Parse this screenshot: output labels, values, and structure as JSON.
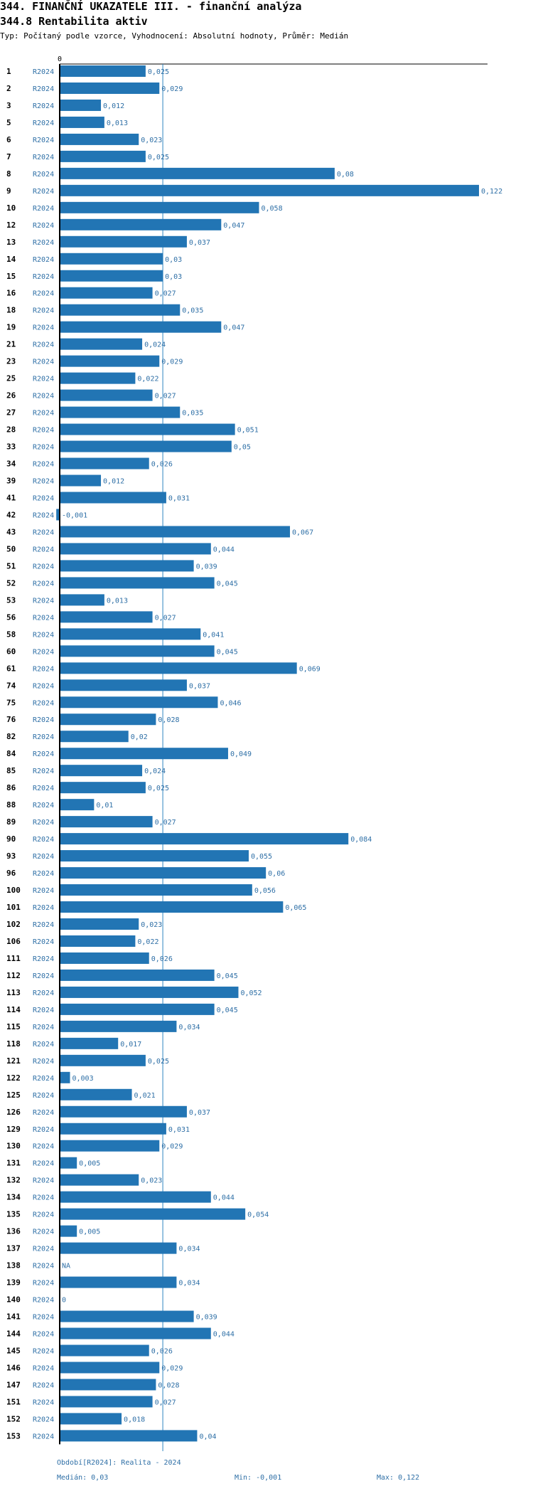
{
  "header": {
    "title": "344. FINANČNÍ UKAZATELE III. - finanční analýza",
    "subtitle": "344.8 Rentabilita aktiv",
    "description": "Typ: Počítaný podle vzorce, Vyhodnocení: Absolutní hodnoty, Průměr: Medián"
  },
  "chart_data": {
    "type": "bar",
    "orientation": "horizontal",
    "title": "344.8 Rentabilita aktiv",
    "xlabel": "",
    "ylabel": "",
    "axis_zero_label": "0",
    "period": "R2024",
    "reference_line": {
      "label": "Medián",
      "value": 0.03
    },
    "xlim": [
      -0.001,
      0.122
    ],
    "colors": {
      "bar": "#2275b4",
      "text": "#2e6fa6",
      "median_line": "#2e86c1"
    },
    "rows": [
      {
        "id": "1",
        "value": 0.025,
        "label": "0,025"
      },
      {
        "id": "2",
        "value": 0.029,
        "label": "0,029"
      },
      {
        "id": "3",
        "value": 0.012,
        "label": "0,012"
      },
      {
        "id": "5",
        "value": 0.013,
        "label": "0,013"
      },
      {
        "id": "6",
        "value": 0.023,
        "label": "0,023"
      },
      {
        "id": "7",
        "value": 0.025,
        "label": "0,025"
      },
      {
        "id": "8",
        "value": 0.08,
        "label": "0,08"
      },
      {
        "id": "9",
        "value": 0.122,
        "label": "0,122"
      },
      {
        "id": "10",
        "value": 0.058,
        "label": "0,058"
      },
      {
        "id": "12",
        "value": 0.047,
        "label": "0,047"
      },
      {
        "id": "13",
        "value": 0.037,
        "label": "0,037"
      },
      {
        "id": "14",
        "value": 0.03,
        "label": "0,03"
      },
      {
        "id": "15",
        "value": 0.03,
        "label": "0,03"
      },
      {
        "id": "16",
        "value": 0.027,
        "label": "0,027"
      },
      {
        "id": "18",
        "value": 0.035,
        "label": "0,035"
      },
      {
        "id": "19",
        "value": 0.047,
        "label": "0,047"
      },
      {
        "id": "21",
        "value": 0.024,
        "label": "0,024"
      },
      {
        "id": "23",
        "value": 0.029,
        "label": "0,029"
      },
      {
        "id": "25",
        "value": 0.022,
        "label": "0,022"
      },
      {
        "id": "26",
        "value": 0.027,
        "label": "0,027"
      },
      {
        "id": "27",
        "value": 0.035,
        "label": "0,035"
      },
      {
        "id": "28",
        "value": 0.051,
        "label": "0,051"
      },
      {
        "id": "33",
        "value": 0.05,
        "label": "0,05"
      },
      {
        "id": "34",
        "value": 0.026,
        "label": "0,026"
      },
      {
        "id": "39",
        "value": 0.012,
        "label": "0,012"
      },
      {
        "id": "41",
        "value": 0.031,
        "label": "0,031"
      },
      {
        "id": "42",
        "value": -0.001,
        "label": "-0,001"
      },
      {
        "id": "43",
        "value": 0.067,
        "label": "0,067"
      },
      {
        "id": "50",
        "value": 0.044,
        "label": "0,044"
      },
      {
        "id": "51",
        "value": 0.039,
        "label": "0,039"
      },
      {
        "id": "52",
        "value": 0.045,
        "label": "0,045"
      },
      {
        "id": "53",
        "value": 0.013,
        "label": "0,013"
      },
      {
        "id": "56",
        "value": 0.027,
        "label": "0,027"
      },
      {
        "id": "58",
        "value": 0.041,
        "label": "0,041"
      },
      {
        "id": "60",
        "value": 0.045,
        "label": "0,045"
      },
      {
        "id": "61",
        "value": 0.069,
        "label": "0,069"
      },
      {
        "id": "74",
        "value": 0.037,
        "label": "0,037"
      },
      {
        "id": "75",
        "value": 0.046,
        "label": "0,046"
      },
      {
        "id": "76",
        "value": 0.028,
        "label": "0,028"
      },
      {
        "id": "82",
        "value": 0.02,
        "label": "0,02"
      },
      {
        "id": "84",
        "value": 0.049,
        "label": "0,049"
      },
      {
        "id": "85",
        "value": 0.024,
        "label": "0,024"
      },
      {
        "id": "86",
        "value": 0.025,
        "label": "0,025"
      },
      {
        "id": "88",
        "value": 0.01,
        "label": "0,01"
      },
      {
        "id": "89",
        "value": 0.027,
        "label": "0,027"
      },
      {
        "id": "90",
        "value": 0.084,
        "label": "0,084"
      },
      {
        "id": "93",
        "value": 0.055,
        "label": "0,055"
      },
      {
        "id": "96",
        "value": 0.06,
        "label": "0,06"
      },
      {
        "id": "100",
        "value": 0.056,
        "label": "0,056"
      },
      {
        "id": "101",
        "value": 0.065,
        "label": "0,065"
      },
      {
        "id": "102",
        "value": 0.023,
        "label": "0,023"
      },
      {
        "id": "106",
        "value": 0.022,
        "label": "0,022"
      },
      {
        "id": "111",
        "value": 0.026,
        "label": "0,026"
      },
      {
        "id": "112",
        "value": 0.045,
        "label": "0,045"
      },
      {
        "id": "113",
        "value": 0.052,
        "label": "0,052"
      },
      {
        "id": "114",
        "value": 0.045,
        "label": "0,045"
      },
      {
        "id": "115",
        "value": 0.034,
        "label": "0,034"
      },
      {
        "id": "118",
        "value": 0.017,
        "label": "0,017"
      },
      {
        "id": "121",
        "value": 0.025,
        "label": "0,025"
      },
      {
        "id": "122",
        "value": 0.003,
        "label": "0,003"
      },
      {
        "id": "125",
        "value": 0.021,
        "label": "0,021"
      },
      {
        "id": "126",
        "value": 0.037,
        "label": "0,037"
      },
      {
        "id": "129",
        "value": 0.031,
        "label": "0,031"
      },
      {
        "id": "130",
        "value": 0.029,
        "label": "0,029"
      },
      {
        "id": "131",
        "value": 0.005,
        "label": "0,005"
      },
      {
        "id": "132",
        "value": 0.023,
        "label": "0,023"
      },
      {
        "id": "134",
        "value": 0.044,
        "label": "0,044"
      },
      {
        "id": "135",
        "value": 0.054,
        "label": "0,054"
      },
      {
        "id": "136",
        "value": 0.005,
        "label": "0,005"
      },
      {
        "id": "137",
        "value": 0.034,
        "label": "0,034"
      },
      {
        "id": "138",
        "value": null,
        "label": "NA"
      },
      {
        "id": "139",
        "value": 0.034,
        "label": "0,034"
      },
      {
        "id": "140",
        "value": 0,
        "label": "0"
      },
      {
        "id": "141",
        "value": 0.039,
        "label": "0,039"
      },
      {
        "id": "144",
        "value": 0.044,
        "label": "0,044"
      },
      {
        "id": "145",
        "value": 0.026,
        "label": "0,026"
      },
      {
        "id": "146",
        "value": 0.029,
        "label": "0,029"
      },
      {
        "id": "147",
        "value": 0.028,
        "label": "0,028"
      },
      {
        "id": "151",
        "value": 0.027,
        "label": "0,027"
      },
      {
        "id": "152",
        "value": 0.018,
        "label": "0,018"
      },
      {
        "id": "153",
        "value": 0.04,
        "label": "0,04"
      }
    ]
  },
  "footer": {
    "period_legend": "Období[R2024]: Realita - 2024",
    "median": "Medián: 0,03",
    "min": "Min: -0,001",
    "max": "Max: 0,122"
  }
}
